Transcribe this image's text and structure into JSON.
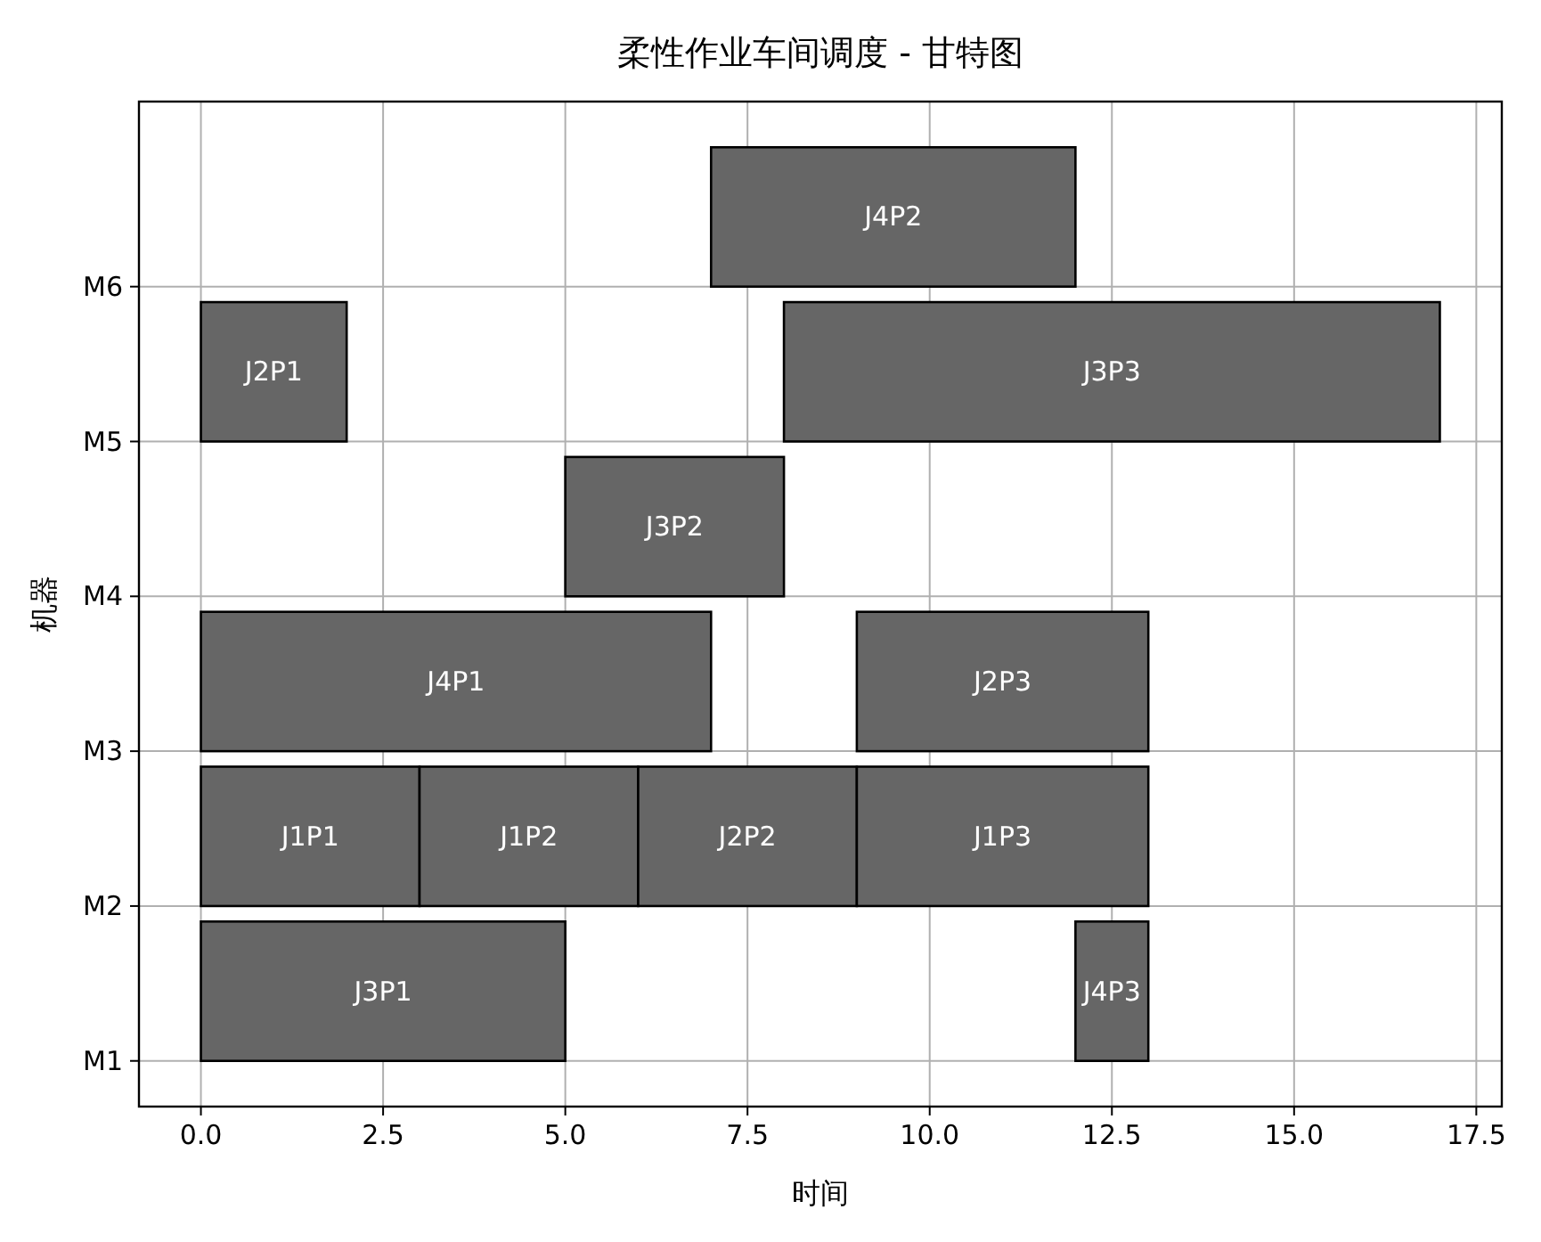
{
  "chart_data": {
    "type": "bar",
    "orientation": "horizontal",
    "title": "柔性作业车间调度 - 甘特图",
    "xlabel": "时间",
    "ylabel": "机器",
    "categories": [
      "M6",
      "M5",
      "M4",
      "M3",
      "M2",
      "M1"
    ],
    "xlim": [
      -0.85,
      17.85
    ],
    "xticks": [
      {
        "value": 0,
        "label": "0.0"
      },
      {
        "value": 2.5,
        "label": "2.5"
      },
      {
        "value": 5,
        "label": "5.0"
      },
      {
        "value": 7.5,
        "label": "7.5"
      },
      {
        "value": 10,
        "label": "10.0"
      },
      {
        "value": 12.5,
        "label": "12.5"
      },
      {
        "value": 15,
        "label": "15.0"
      },
      {
        "value": 17.5,
        "label": "17.5"
      }
    ],
    "grid": true,
    "series": [
      {
        "name": "J3P1",
        "color": "#666666",
        "values": [
          null,
          null,
          null,
          null,
          null,
          5
        ],
        "base": [
          null,
          null,
          null,
          null,
          null,
          0
        ]
      },
      {
        "name": "J4P3",
        "color": "#666666",
        "values": [
          null,
          null,
          null,
          null,
          null,
          1
        ],
        "base": [
          null,
          null,
          null,
          null,
          null,
          12
        ]
      },
      {
        "name": "J1P1",
        "color": "#666666",
        "values": [
          null,
          null,
          null,
          null,
          3,
          null
        ],
        "base": [
          null,
          null,
          null,
          null,
          0,
          null
        ]
      },
      {
        "name": "J1P2",
        "color": "#666666",
        "values": [
          null,
          null,
          null,
          null,
          3,
          null
        ],
        "base": [
          null,
          null,
          null,
          null,
          3,
          null
        ]
      },
      {
        "name": "J2P2",
        "color": "#666666",
        "values": [
          null,
          null,
          null,
          null,
          3,
          null
        ],
        "base": [
          null,
          null,
          null,
          null,
          6,
          null
        ]
      },
      {
        "name": "J1P3",
        "color": "#666666",
        "values": [
          null,
          null,
          null,
          null,
          4,
          null
        ],
        "base": [
          null,
          null,
          null,
          null,
          9,
          null
        ]
      },
      {
        "name": "J4P1",
        "color": "#666666",
        "values": [
          null,
          null,
          null,
          7,
          null,
          null
        ],
        "base": [
          null,
          null,
          null,
          0,
          null,
          null
        ]
      },
      {
        "name": "J2P3",
        "color": "#666666",
        "values": [
          null,
          null,
          null,
          4,
          null,
          null
        ],
        "base": [
          null,
          null,
          null,
          9,
          null,
          null
        ]
      },
      {
        "name": "J3P2",
        "color": "#666666",
        "values": [
          null,
          null,
          3,
          null,
          null,
          null
        ],
        "base": [
          null,
          null,
          5,
          null,
          null,
          null
        ]
      },
      {
        "name": "J2P1",
        "color": "#666666",
        "values": [
          null,
          2,
          null,
          null,
          null,
          null
        ],
        "base": [
          null,
          0,
          null,
          null,
          null,
          null
        ]
      },
      {
        "name": "J3P3",
        "color": "#666666",
        "values": [
          null,
          9,
          null,
          null,
          null,
          null
        ],
        "base": [
          null,
          8,
          null,
          null,
          null,
          null
        ]
      },
      {
        "name": "J4P2",
        "color": "#666666",
        "values": [
          5,
          null,
          null,
          null,
          null,
          null
        ],
        "base": [
          7,
          null,
          null,
          null,
          null,
          null
        ]
      }
    ]
  }
}
